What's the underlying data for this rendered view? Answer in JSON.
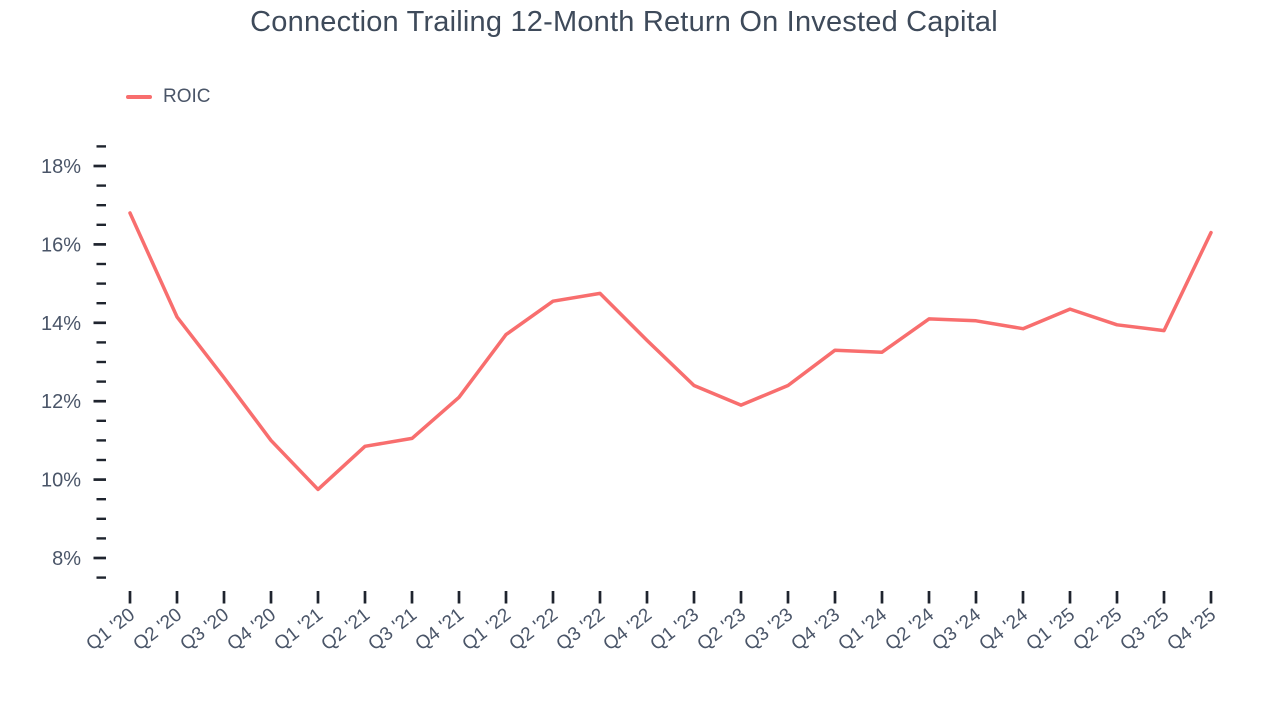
{
  "title": "Connection Trailing 12-Month Return On Invested Capital",
  "legend": {
    "label": "ROIC"
  },
  "colors": {
    "line": "#F86E6E",
    "title_text": "#3E4A5A",
    "axis_text": "#4A5568",
    "tick": "#1F242E"
  },
  "chart_data": {
    "type": "line",
    "title": "Connection Trailing 12-Month Return On Invested Capital",
    "categories": [
      "Q1 '20",
      "Q2 '20",
      "Q3 '20",
      "Q4 '20",
      "Q1 '21",
      "Q2 '21",
      "Q3 '21",
      "Q4 '21",
      "Q1 '22",
      "Q2 '22",
      "Q3 '22",
      "Q4 '22",
      "Q1 '23",
      "Q2 '23",
      "Q3 '23",
      "Q4 '23",
      "Q1 '24",
      "Q2 '24",
      "Q3 '24",
      "Q4 '24",
      "Q1 '25",
      "Q2 '25",
      "Q3 '25",
      "Q4 '25"
    ],
    "series": [
      {
        "name": "ROIC",
        "values": [
          16.8,
          14.15,
          12.6,
          11.0,
          9.75,
          10.85,
          11.05,
          12.1,
          13.7,
          14.55,
          14.75,
          13.55,
          12.4,
          11.9,
          12.4,
          13.3,
          13.25,
          14.1,
          14.05,
          13.85,
          14.35,
          13.95,
          13.8,
          16.3
        ]
      }
    ],
    "xlabel": "",
    "ylabel": "",
    "unit": "%",
    "y_axis": {
      "min": 7.5,
      "max": 18.5,
      "major_step": 2,
      "minor_step": 0.5,
      "labeled_ticks": [
        8,
        10,
        12,
        14,
        16,
        18
      ],
      "tick_labels": [
        "8%",
        "10%",
        "12%",
        "14%",
        "16%",
        "18%"
      ]
    },
    "grid": false,
    "legend_position": "top-left"
  }
}
